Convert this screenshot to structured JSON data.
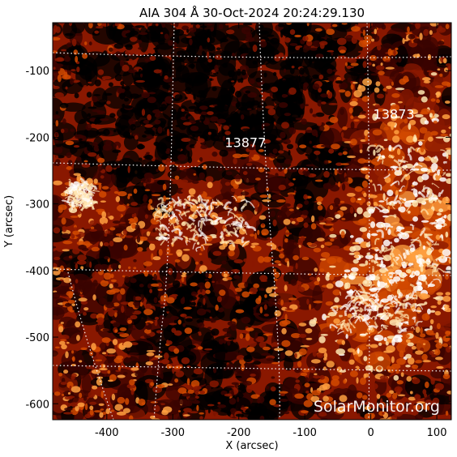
{
  "figure": {
    "title": "AIA 304 Å 30-Oct-2024 20:24:29.130",
    "xlabel": "X (arcsec)",
    "ylabel": "Y (arcsec)",
    "watermark": "SolarMonitor.org"
  },
  "axes": {
    "x_ticks": [
      "-400",
      "-300",
      "-200",
      "-100",
      "0",
      "100"
    ],
    "y_ticks": [
      "-100",
      "-200",
      "-300",
      "-400",
      "-500",
      "-600"
    ],
    "x_range_arcsec": [
      -482,
      122
    ],
    "y_range_arcsec": [
      -624,
      -28
    ]
  },
  "regions": [
    {
      "number": "13873",
      "x_arcsec": 35,
      "y_arcsec": -172
    },
    {
      "number": "13877",
      "x_arcsec": -190,
      "y_arcsec": -215
    }
  ],
  "colors": {
    "colormap": [
      "#000000",
      "#3a0300",
      "#8a1800",
      "#d24a00",
      "#ffa040",
      "#ffe6b0",
      "#ffffff"
    ],
    "grid": "#ffffff"
  }
}
